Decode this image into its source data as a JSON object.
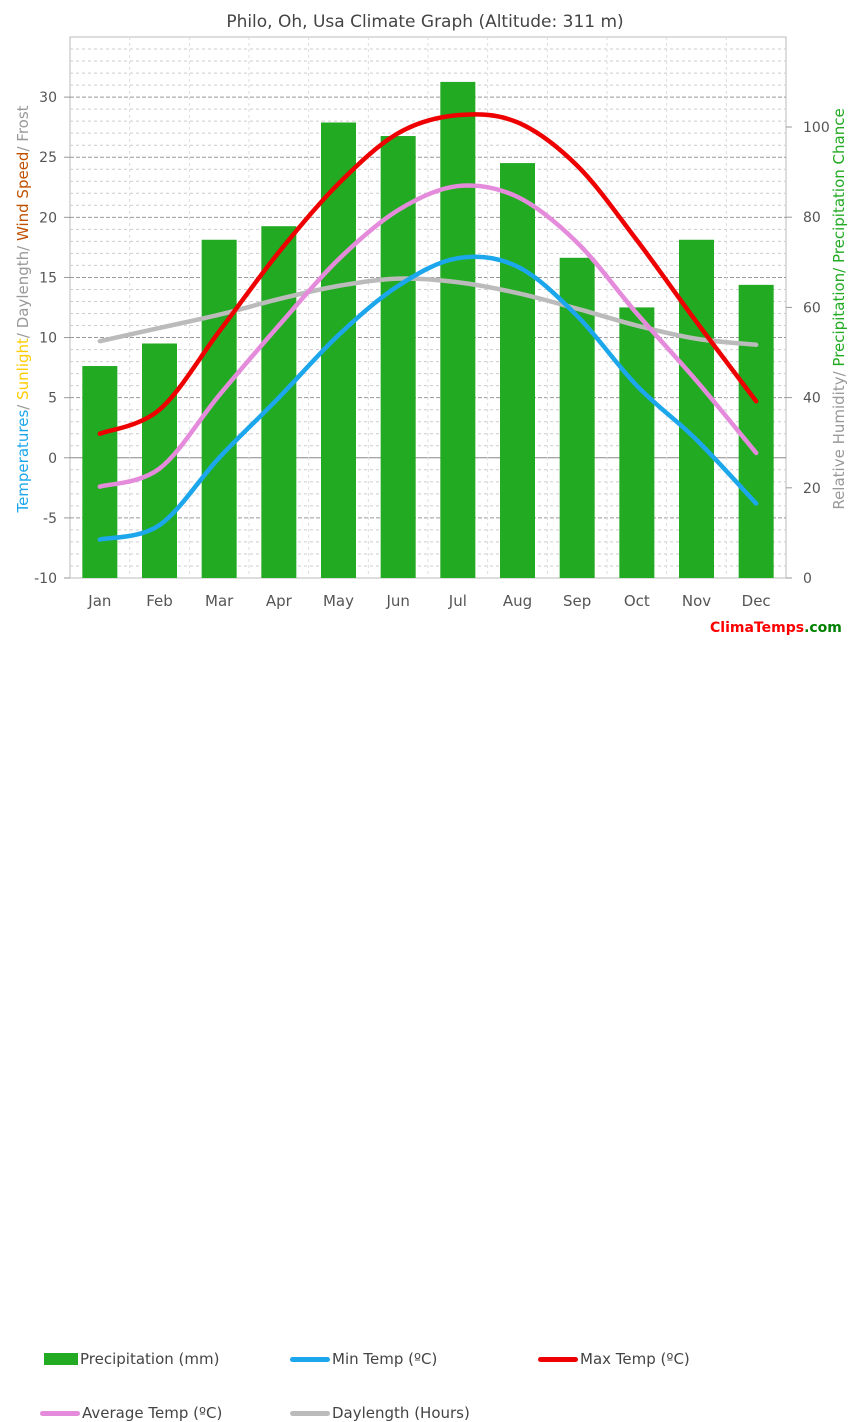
{
  "title": "Philo, Oh, Usa Climate Graph (Altitude: 311 m)",
  "brand": {
    "part1": "Clima",
    "part2": "Temps",
    "part3": ".com",
    "color1": "#ff0000",
    "color2": "#ff0000",
    "color3": "#008000"
  },
  "chart_data": {
    "type": "bar",
    "categories": [
      "Jan",
      "Feb",
      "Mar",
      "Apr",
      "May",
      "Jun",
      "Jul",
      "Aug",
      "Sep",
      "Oct",
      "Nov",
      "Dec"
    ],
    "left_axis": {
      "ylim": [
        -10,
        30
      ],
      "ticks": [
        -10,
        -5,
        0,
        5,
        10,
        15,
        20,
        25,
        30
      ],
      "label_parts": [
        {
          "text": "Temperatures",
          "color": "#1ca7ec"
        },
        {
          "text": "/ ",
          "color": "#999999"
        },
        {
          "text": "Sunlight",
          "color": "#ffcc00"
        },
        {
          "text": "/ Daylength/ ",
          "color": "#999999"
        },
        {
          "text": "Wind Speed",
          "color": "#c05000"
        },
        {
          "text": "/ Frost",
          "color": "#999999"
        }
      ]
    },
    "right_axis": {
      "ylim": [
        0,
        100
      ],
      "ticks": [
        0,
        20,
        40,
        60,
        80,
        100
      ],
      "label_parts": [
        {
          "text": "Relative Humidity/ ",
          "color": "#999999"
        },
        {
          "text": "Precipitation/ Precipitation Chance",
          "color": "#22aa22"
        }
      ]
    },
    "series": [
      {
        "name": "Precipitation (mm)",
        "kind": "bar",
        "axis": "right",
        "color": "#22aa22",
        "values": [
          47,
          52,
          75,
          78,
          101,
          98,
          110,
          92,
          71,
          60,
          75,
          65
        ]
      },
      {
        "name": "Min Temp (ºC)",
        "kind": "line",
        "axis": "left",
        "color": "#1ca7ec",
        "values": [
          -6.8,
          -5.6,
          0.0,
          5.0,
          10.2,
          14.3,
          16.6,
          15.9,
          11.8,
          6.0,
          1.5,
          -3.8
        ]
      },
      {
        "name": "Max Temp (ºC)",
        "kind": "line",
        "axis": "left",
        "color": "#ee0000",
        "values": [
          2.0,
          4.0,
          10.5,
          17.1,
          22.8,
          27.0,
          28.5,
          27.9,
          24.3,
          18.1,
          11.3,
          4.7
        ]
      },
      {
        "name": "Average Temp (ºC)",
        "kind": "line",
        "axis": "left",
        "color": "#e58bdc",
        "values": [
          -2.4,
          -0.9,
          5.2,
          11.0,
          16.5,
          20.6,
          22.6,
          21.7,
          17.9,
          12.0,
          6.4,
          0.4
        ]
      },
      {
        "name": "Daylength (Hours)",
        "kind": "line",
        "axis": "left",
        "color": "#bbbbbb",
        "values": [
          9.7,
          10.8,
          11.9,
          13.2,
          14.3,
          14.9,
          14.6,
          13.7,
          12.4,
          11.0,
          9.9,
          9.4
        ]
      }
    ],
    "grid": true,
    "legend": "bottom"
  }
}
